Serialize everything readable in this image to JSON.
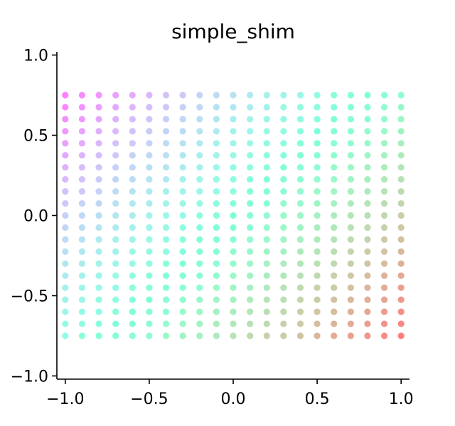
{
  "chart_data": {
    "type": "scatter",
    "title": "simple_shim",
    "xlabel": "",
    "ylabel": "",
    "xlim": [
      -1.05,
      1.05
    ],
    "ylim": [
      -1.02,
      1.02
    ],
    "xticks": [
      -1.0,
      -0.5,
      0.0,
      0.5,
      1.0
    ],
    "yticks": [
      -1.0,
      -0.5,
      0.0,
      0.5,
      1.0
    ],
    "xtick_labels": [
      "−1.0",
      "−0.5",
      "0.0",
      "0.5",
      "1.0"
    ],
    "ytick_labels": [
      "−1.0",
      "−0.5",
      "0.0",
      "0.5",
      "1.0"
    ],
    "grid": false,
    "spines": "left-bottom",
    "point_grid": {
      "x": [
        -1.0,
        -0.9,
        -0.8,
        -0.7,
        -0.6,
        -0.5,
        -0.4,
        -0.3,
        -0.2,
        -0.1,
        0.0,
        0.1,
        0.2,
        0.3,
        0.4,
        0.5,
        0.6,
        0.7,
        0.8,
        0.9,
        1.0
      ],
      "y": [
        0.75,
        0.675,
        0.6,
        0.525,
        0.45,
        0.375,
        0.3,
        0.225,
        0.15,
        0.075,
        0.0,
        -0.075,
        -0.15,
        -0.225,
        -0.3,
        -0.375,
        -0.45,
        -0.525,
        -0.6,
        -0.675,
        -0.75
      ]
    },
    "colormap": "rainbow",
    "color_encodes": "x - y",
    "color_range": [
      -1.75,
      1.75
    ]
  }
}
